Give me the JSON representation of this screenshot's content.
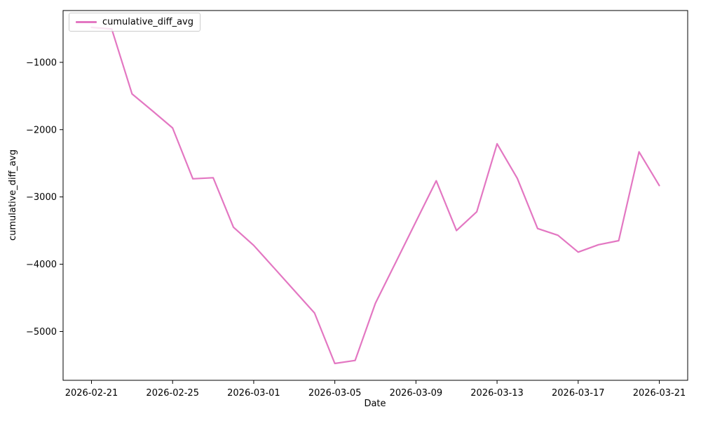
{
  "chart_data": {
    "type": "line",
    "title": "",
    "xlabel": "Date",
    "ylabel": "cumulative_diff_avg",
    "grid": false,
    "background": "#ffffff",
    "axis_color": "#000000",
    "legend": {
      "position": "upper left",
      "entries": [
        "cumulative_diff_avg"
      ]
    },
    "x_tick_labels": [
      "2026-02-21",
      "2026-02-25",
      "2026-03-01",
      "2026-03-05",
      "2026-03-09",
      "2026-03-13",
      "2026-03-17",
      "2026-03-21"
    ],
    "y_tick_values": [
      -1000,
      -2000,
      -3000,
      -4000,
      -5000
    ],
    "y_tick_labels": [
      "−1000",
      "−2000",
      "−3000",
      "−4000",
      "−5000"
    ],
    "xlim_day_index": [
      -1.4,
      29.4
    ],
    "ylim": [
      -5725,
      -230
    ],
    "series": [
      {
        "name": "cumulative_diff_avg",
        "color": "#e377c2",
        "x": [
          "2026-02-21",
          "2026-02-22",
          "2026-02-23",
          "2026-02-24",
          "2026-02-25",
          "2026-02-26",
          "2026-02-27",
          "2026-02-28",
          "2026-03-01",
          "2026-03-02",
          "2026-03-03",
          "2026-03-04",
          "2026-03-05",
          "2026-03-06",
          "2026-03-07",
          "2026-03-08",
          "2026-03-09",
          "2026-03-10",
          "2026-03-11",
          "2026-03-12",
          "2026-03-13",
          "2026-03-14",
          "2026-03-15",
          "2026-03-16",
          "2026-03-17",
          "2026-03-18",
          "2026-03-19",
          "2026-03-20",
          "2026-03-21"
        ],
        "values": [
          -480,
          -505,
          -1470,
          -1720,
          -1975,
          -2730,
          -2715,
          -3450,
          -3720,
          -4055,
          -4390,
          -4725,
          -5475,
          -5430,
          -4580,
          -3975,
          -3365,
          -2760,
          -3500,
          -3220,
          -2210,
          -2725,
          -3470,
          -3570,
          -3820,
          -3710,
          -3650,
          -2330,
          -2830
        ]
      }
    ]
  }
}
